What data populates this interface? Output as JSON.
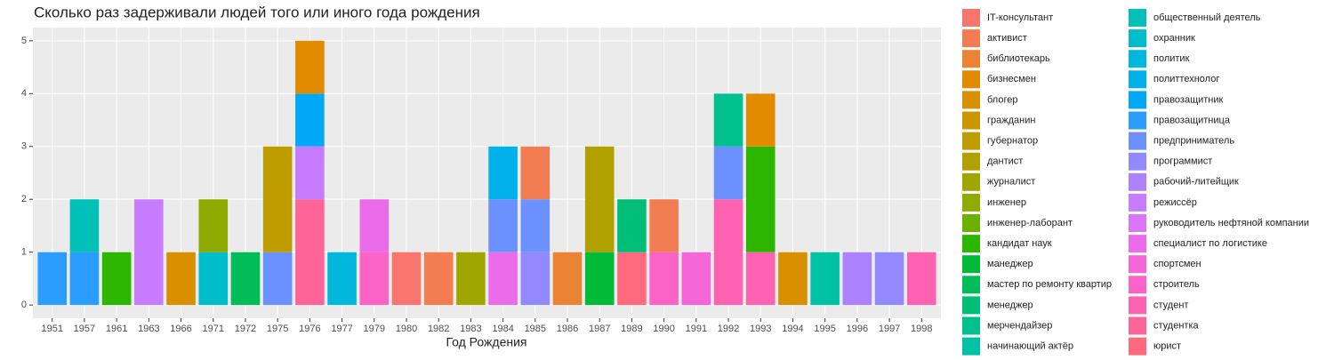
{
  "chart_data": {
    "type": "stacked-bar",
    "title": "Сколько раз задерживали людей того или иного года рождения",
    "x_label": "Год Рождения",
    "categories": [
      "1951",
      "1957",
      "1961",
      "1963",
      "1966",
      "1971",
      "1972",
      "1975",
      "1976",
      "1977",
      "1979",
      "1980",
      "1982",
      "1983",
      "1984",
      "1985",
      "1986",
      "1987",
      "1989",
      "1990",
      "1991",
      "1992",
      "1993",
      "1994",
      "1995",
      "1996",
      "1997",
      "1998"
    ],
    "ylim": [
      -0.25,
      5.25
    ],
    "yticks": [
      0,
      1,
      2,
      3,
      4,
      5
    ],
    "grid": true,
    "series": [
      {
        "name": "IT-консультант",
        "color": "#F8766D",
        "values": [
          null,
          null,
          null,
          null,
          null,
          null,
          null,
          null,
          null,
          null,
          null,
          1,
          null,
          null,
          null,
          null,
          null,
          null,
          null,
          null,
          null,
          null,
          null,
          null,
          null,
          null,
          null,
          null
        ]
      },
      {
        "name": "активист",
        "color": "#F27D52",
        "values": [
          null,
          null,
          null,
          null,
          null,
          null,
          null,
          null,
          null,
          null,
          null,
          null,
          1,
          null,
          null,
          1,
          null,
          null,
          null,
          1,
          null,
          null,
          null,
          null,
          null,
          null,
          null,
          null
        ]
      },
      {
        "name": "библиотекарь",
        "color": "#EB8335",
        "values": [
          null,
          null,
          null,
          null,
          null,
          null,
          null,
          null,
          null,
          null,
          null,
          null,
          null,
          null,
          null,
          null,
          1,
          null,
          null,
          null,
          null,
          null,
          null,
          null,
          null,
          null,
          null,
          null
        ]
      },
      {
        "name": "бизнесмен",
        "color": "#E28A00",
        "values": [
          null,
          null,
          null,
          null,
          null,
          null,
          null,
          null,
          1,
          null,
          null,
          null,
          null,
          null,
          null,
          null,
          null,
          null,
          null,
          null,
          null,
          null,
          1,
          null,
          null,
          null,
          null,
          null
        ]
      },
      {
        "name": "блогер",
        "color": "#D89000",
        "values": [
          null,
          null,
          null,
          null,
          1,
          null,
          null,
          null,
          null,
          null,
          null,
          null,
          null,
          null,
          null,
          null,
          null,
          null,
          null,
          null,
          null,
          null,
          null,
          1,
          null,
          null,
          null,
          null
        ]
      },
      {
        "name": "гражданин",
        "color": "#CC9600",
        "values": [
          null,
          null,
          null,
          null,
          null,
          null,
          null,
          null,
          null,
          null,
          null,
          null,
          null,
          null,
          null,
          null,
          null,
          null,
          null,
          null,
          null,
          null,
          null,
          null,
          null,
          null,
          null,
          null
        ]
      },
      {
        "name": "губернатор",
        "color": "#BF9C00",
        "values": [
          null,
          null,
          null,
          null,
          null,
          null,
          null,
          2,
          null,
          null,
          null,
          null,
          null,
          null,
          null,
          null,
          null,
          null,
          null,
          null,
          null,
          null,
          null,
          null,
          null,
          null,
          null,
          null
        ]
      },
      {
        "name": "дантист",
        "color": "#B0A100",
        "values": [
          null,
          null,
          null,
          null,
          null,
          null,
          null,
          null,
          null,
          null,
          null,
          null,
          null,
          null,
          null,
          null,
          null,
          2,
          null,
          null,
          null,
          null,
          null,
          null,
          null,
          null,
          null,
          null
        ]
      },
      {
        "name": "журналист",
        "color": "#A0A600",
        "values": [
          null,
          null,
          null,
          null,
          null,
          null,
          null,
          null,
          null,
          null,
          null,
          null,
          null,
          1,
          null,
          null,
          null,
          null,
          null,
          null,
          null,
          null,
          null,
          null,
          null,
          null,
          null,
          null
        ]
      },
      {
        "name": "инженер",
        "color": "#8FAA00",
        "values": [
          null,
          null,
          null,
          null,
          null,
          1,
          null,
          null,
          null,
          null,
          null,
          null,
          null,
          null,
          null,
          null,
          null,
          null,
          null,
          null,
          null,
          null,
          null,
          null,
          null,
          null,
          null,
          null
        ]
      },
      {
        "name": "инженер-лаборант",
        "color": "#6BB100",
        "values": [
          null,
          null,
          null,
          null,
          null,
          null,
          null,
          null,
          null,
          null,
          null,
          null,
          null,
          null,
          null,
          null,
          null,
          null,
          null,
          null,
          null,
          null,
          null,
          null,
          null,
          null,
          null,
          null
        ]
      },
      {
        "name": "кандидат наук",
        "color": "#2DB600",
        "values": [
          null,
          null,
          1,
          null,
          null,
          null,
          null,
          null,
          null,
          null,
          null,
          null,
          null,
          null,
          null,
          null,
          null,
          null,
          null,
          null,
          null,
          null,
          2,
          null,
          null,
          null,
          null,
          null
        ]
      },
      {
        "name": "манеджер",
        "color": "#00BA38",
        "values": [
          null,
          null,
          null,
          null,
          null,
          null,
          null,
          null,
          null,
          null,
          null,
          null,
          null,
          null,
          null,
          null,
          null,
          1,
          null,
          null,
          null,
          null,
          null,
          null,
          null,
          null,
          null,
          null
        ]
      },
      {
        "name": "мастер по ремонту квартир",
        "color": "#00BC59",
        "values": [
          null,
          null,
          null,
          null,
          null,
          null,
          1,
          null,
          null,
          null,
          null,
          null,
          null,
          null,
          null,
          null,
          null,
          null,
          null,
          null,
          null,
          null,
          null,
          null,
          null,
          null,
          null,
          null
        ]
      },
      {
        "name": "менеджер",
        "color": "#00BE75",
        "values": [
          null,
          null,
          null,
          null,
          null,
          null,
          null,
          null,
          null,
          null,
          null,
          null,
          null,
          null,
          null,
          null,
          null,
          null,
          1,
          null,
          null,
          null,
          null,
          null,
          null,
          null,
          null,
          null
        ]
      },
      {
        "name": "мерчендайзер",
        "color": "#00C08D",
        "values": [
          null,
          null,
          null,
          null,
          null,
          null,
          null,
          null,
          null,
          null,
          null,
          null,
          null,
          null,
          null,
          null,
          null,
          null,
          null,
          null,
          null,
          1,
          null,
          null,
          null,
          null,
          null,
          null
        ]
      },
      {
        "name": "начинающий актёр",
        "color": "#00C1A3",
        "values": [
          null,
          null,
          null,
          null,
          null,
          null,
          null,
          null,
          null,
          null,
          null,
          null,
          null,
          null,
          null,
          null,
          null,
          null,
          null,
          null,
          null,
          null,
          null,
          null,
          1,
          null,
          null,
          null
        ]
      },
      {
        "name": "общественный деятель",
        "color": "#00C0B8",
        "values": [
          null,
          1,
          null,
          null,
          null,
          null,
          null,
          null,
          null,
          null,
          null,
          null,
          null,
          null,
          null,
          null,
          null,
          null,
          null,
          null,
          null,
          null,
          null,
          null,
          null,
          null,
          null,
          null
        ]
      },
      {
        "name": "охранник",
        "color": "#00BDCB",
        "values": [
          null,
          null,
          null,
          null,
          null,
          1,
          null,
          null,
          null,
          null,
          null,
          null,
          null,
          null,
          null,
          null,
          null,
          null,
          null,
          null,
          null,
          null,
          null,
          null,
          null,
          null,
          null,
          null
        ]
      },
      {
        "name": "политик",
        "color": "#00B8DC",
        "values": [
          null,
          null,
          null,
          null,
          null,
          null,
          null,
          null,
          null,
          1,
          null,
          null,
          null,
          null,
          null,
          null,
          null,
          null,
          null,
          null,
          null,
          null,
          null,
          null,
          null,
          null,
          null,
          null
        ]
      },
      {
        "name": "политтехнолог",
        "color": "#00B1EB",
        "values": [
          null,
          null,
          null,
          null,
          null,
          null,
          null,
          null,
          null,
          null,
          null,
          null,
          null,
          null,
          1,
          null,
          null,
          null,
          null,
          null,
          null,
          null,
          null,
          null,
          null,
          null,
          null,
          null
        ]
      },
      {
        "name": "правозащитник",
        "color": "#00A8F7",
        "values": [
          null,
          null,
          null,
          null,
          null,
          null,
          null,
          null,
          1,
          null,
          null,
          null,
          null,
          null,
          null,
          null,
          null,
          null,
          null,
          null,
          null,
          null,
          null,
          null,
          null,
          null,
          null,
          null
        ]
      },
      {
        "name": "правозащитница",
        "color": "#2A9DFF",
        "values": [
          1,
          1,
          null,
          null,
          null,
          null,
          null,
          null,
          null,
          null,
          null,
          null,
          null,
          null,
          null,
          null,
          null,
          null,
          null,
          null,
          null,
          null,
          null,
          null,
          null,
          null,
          null,
          null
        ]
      },
      {
        "name": "предприниматель",
        "color": "#6B91FF",
        "values": [
          null,
          null,
          null,
          null,
          null,
          null,
          null,
          1,
          null,
          null,
          null,
          null,
          null,
          null,
          1,
          1,
          null,
          null,
          null,
          null,
          null,
          1,
          null,
          null,
          null,
          null,
          null,
          null
        ]
      },
      {
        "name": "программист",
        "color": "#9289FF",
        "values": [
          null,
          null,
          null,
          null,
          null,
          null,
          null,
          null,
          null,
          null,
          null,
          null,
          null,
          null,
          null,
          1,
          null,
          null,
          null,
          null,
          null,
          null,
          null,
          null,
          null,
          null,
          1,
          null
        ]
      },
      {
        "name": "рабочий-литейщик",
        "color": "#AE82FF",
        "values": [
          null,
          null,
          null,
          null,
          null,
          null,
          null,
          null,
          null,
          null,
          null,
          null,
          null,
          null,
          null,
          null,
          null,
          null,
          null,
          null,
          null,
          null,
          null,
          null,
          null,
          1,
          null,
          null
        ]
      },
      {
        "name": "режиссёр",
        "color": "#C77CFF",
        "values": [
          null,
          null,
          null,
          2,
          null,
          null,
          null,
          null,
          1,
          null,
          null,
          null,
          null,
          null,
          null,
          null,
          null,
          null,
          null,
          null,
          null,
          null,
          null,
          null,
          null,
          null,
          null,
          null
        ]
      },
      {
        "name": "руководитель нефтяной компании",
        "color": "#DC74F7",
        "values": [
          null,
          null,
          null,
          null,
          null,
          null,
          null,
          null,
          null,
          null,
          null,
          null,
          null,
          null,
          null,
          null,
          null,
          null,
          null,
          null,
          null,
          null,
          null,
          null,
          null,
          null,
          null,
          null
        ]
      },
      {
        "name": "специалист по логистике",
        "color": "#EB6CEA",
        "values": [
          null,
          null,
          null,
          null,
          null,
          null,
          null,
          null,
          null,
          null,
          1,
          null,
          null,
          null,
          1,
          null,
          null,
          null,
          null,
          null,
          null,
          null,
          null,
          null,
          null,
          null,
          null,
          null
        ]
      },
      {
        "name": "спортсмен",
        "color": "#F566D9",
        "values": [
          null,
          null,
          null,
          null,
          null,
          null,
          null,
          null,
          null,
          null,
          null,
          null,
          null,
          null,
          null,
          null,
          null,
          null,
          null,
          null,
          1,
          null,
          null,
          null,
          null,
          null,
          null,
          null
        ]
      },
      {
        "name": "строитель",
        "color": "#FC63C6",
        "values": [
          null,
          null,
          null,
          null,
          null,
          null,
          null,
          null,
          null,
          null,
          1,
          null,
          null,
          null,
          null,
          null,
          null,
          null,
          null,
          1,
          null,
          null,
          null,
          null,
          null,
          null,
          null,
          null
        ]
      },
      {
        "name": "студент",
        "color": "#FF62B0",
        "values": [
          null,
          null,
          null,
          null,
          null,
          null,
          null,
          null,
          null,
          null,
          null,
          null,
          null,
          null,
          null,
          null,
          null,
          null,
          null,
          null,
          null,
          2,
          1,
          null,
          null,
          null,
          null,
          1
        ]
      },
      {
        "name": "студентка",
        "color": "#FF6498",
        "values": [
          null,
          null,
          null,
          null,
          null,
          null,
          null,
          null,
          2,
          null,
          null,
          null,
          null,
          null,
          null,
          null,
          null,
          null,
          null,
          null,
          null,
          null,
          null,
          null,
          null,
          null,
          null,
          null
        ]
      },
      {
        "name": "юрист",
        "color": "#FF6A7F",
        "values": [
          null,
          null,
          null,
          null,
          null,
          null,
          null,
          null,
          null,
          null,
          null,
          null,
          null,
          null,
          null,
          null,
          null,
          null,
          1,
          null,
          null,
          null,
          null,
          null,
          null,
          null,
          null,
          null
        ]
      }
    ]
  }
}
